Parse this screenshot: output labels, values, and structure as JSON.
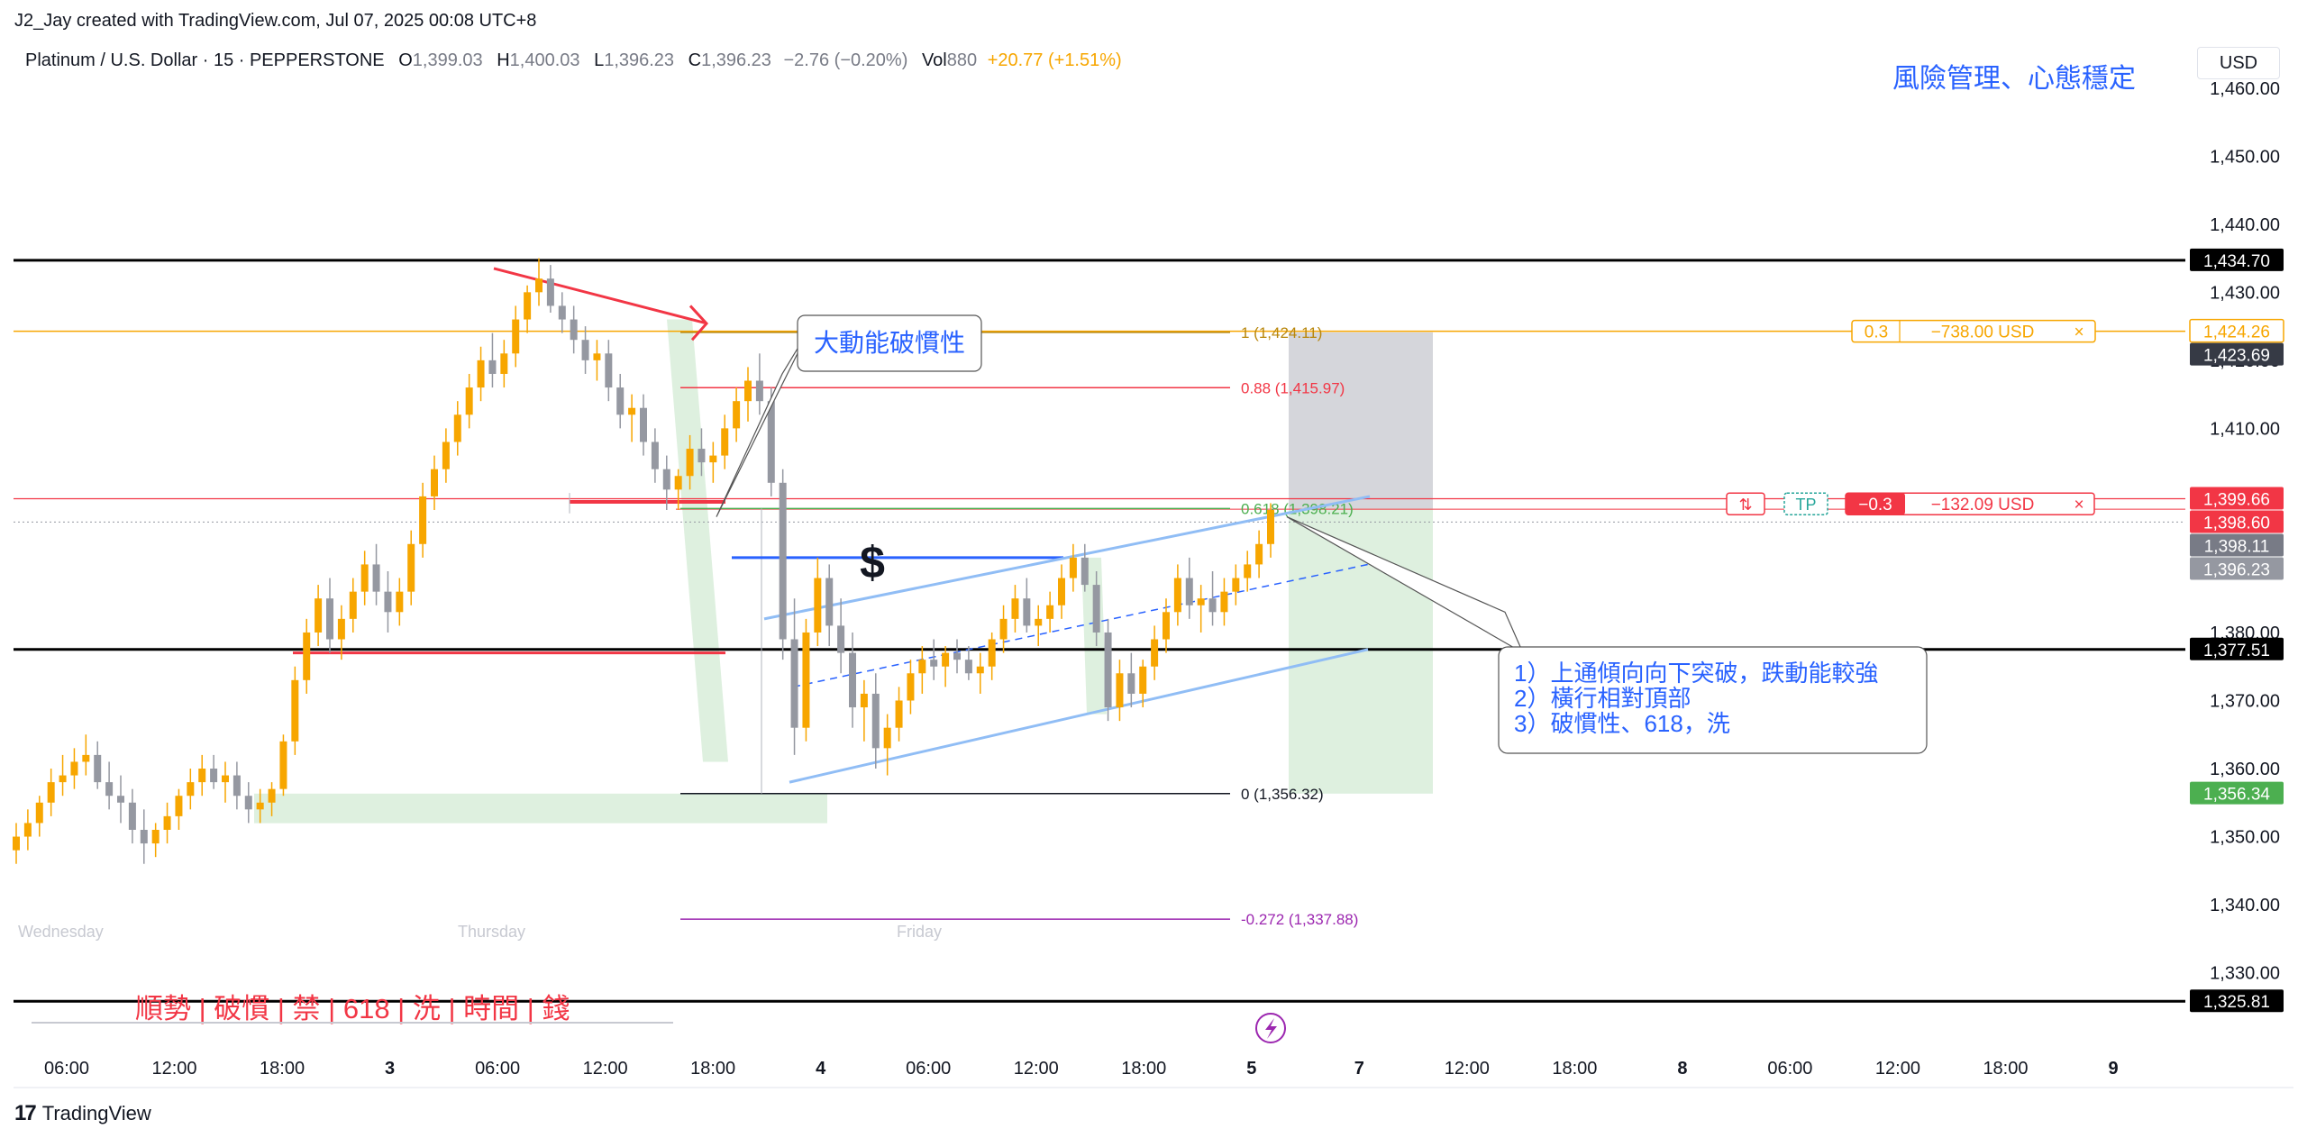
{
  "credit": "J2_Jay created with TradingView.com, Jul 07, 2025 00:08 UTC+8",
  "legend": {
    "symbol": "Platinum / U.S. Dollar · 15 · PEPPERSTONE",
    "o_key": "O",
    "o": "1,399.03",
    "h_key": "H",
    "h": "1,400.03",
    "l_key": "L",
    "l": "1,396.23",
    "c_key": "C",
    "c": "1,396.23",
    "change": "−2.76 (−0.20%)",
    "vol_key": "Vol",
    "vol": "880",
    "vol_change": "+20.77 (+1.51%)"
  },
  "currency": "USD",
  "footer": "TradingView",
  "colors": {
    "up": "#f7a600",
    "down": "#9598a1",
    "red": "#f23645",
    "blue": "#2962ff",
    "green": "#4caf50",
    "purple": "#9c27b0"
  },
  "chart_data": {
    "type": "candlestick",
    "ylim": [
      1322,
      1465
    ],
    "y_ticks": [
      "1,330.00",
      "1,340.00",
      "1,350.00",
      "1,360.00",
      "1,370.00",
      "1,380.00",
      "1,390.00",
      "1,400.00",
      "1,410.00",
      "1,420.00",
      "1,430.00",
      "1,440.00",
      "1,450.00",
      "1,460.00"
    ],
    "y_tick_values": [
      1330,
      1340,
      1350,
      1360,
      1370,
      1380,
      1390,
      1400,
      1410,
      1420,
      1430,
      1440,
      1450,
      1460
    ],
    "x_ticks": [
      "06:00",
      "12:00",
      "18:00",
      "3",
      "06:00",
      "12:00",
      "18:00",
      "4",
      "06:00",
      "12:00",
      "18:00",
      "5",
      "7",
      "12:00",
      "18:00",
      "8",
      "06:00",
      "12:00",
      "18:00",
      "9"
    ],
    "x_tick_bold": [
      false,
      false,
      false,
      true,
      false,
      false,
      false,
      true,
      false,
      false,
      false,
      true,
      true,
      false,
      false,
      true,
      false,
      false,
      false,
      true
    ],
    "day_labels": [
      "Wednesday",
      "Thursday",
      "Friday"
    ],
    "price_levels": [
      {
        "label": "1,434.70",
        "value": 1434.7,
        "color": "#000000"
      },
      {
        "label": "1,424.26",
        "value": 1424.26,
        "color": "#f7a600",
        "outlined": true
      },
      {
        "label": "1,423.69",
        "value": 1423.69,
        "color": "#363a45"
      },
      {
        "label": "1,399.66",
        "value": 1399.66,
        "color": "#f23645"
      },
      {
        "label": "1,398.60",
        "value": 1398.6,
        "color": "#f23645"
      },
      {
        "label": "1,398.11",
        "value": 1398.11,
        "color": "#787b86"
      },
      {
        "label": "1,396.23",
        "value": 1396.23,
        "color": "#9598a1"
      },
      {
        "label": "1,377.51",
        "value": 1377.51,
        "color": "#000000"
      },
      {
        "label": "1,356.34",
        "value": 1356.34,
        "color": "#4caf50"
      },
      {
        "label": "1,325.81",
        "value": 1325.81,
        "color": "#000000"
      }
    ],
    "fib": [
      {
        "label": "1 (1,424.11)",
        "value": 1424.11,
        "color": "#b8860b"
      },
      {
        "label": "0.88 (1,415.97)",
        "value": 1415.97,
        "color": "#f23645"
      },
      {
        "label": "0.618 (1,398.21)",
        "value": 1398.21,
        "color": "#4caf50"
      },
      {
        "label": "0 (1,356.32)",
        "value": 1356.32,
        "color": "#131722"
      },
      {
        "label": "-0.272 (1,337.88)",
        "value": 1337.88,
        "color": "#9c27b0"
      }
    ],
    "orders": [
      {
        "qty": "0.3",
        "pnl": "−738.00 USD",
        "close": "×",
        "value": 1424.26
      },
      {
        "qty": "−0.3",
        "pnl": "−132.09 USD",
        "close": "×",
        "tp": "TP",
        "swap": "⇅",
        "value": 1398.6
      }
    ],
    "annotations": {
      "top_right": "風險管理、心態穩定",
      "callout1": "大動能破慣性",
      "callout2": [
        "1）上通傾向向下突破，跌動能較強",
        "2）橫行相對頂部",
        "3）破慣性、618，洗"
      ],
      "bottom": "順勢 | 破慣 | 禁 | 618 | 洗 | 時間 | 錢",
      "dollar": "$"
    },
    "candles": [
      [
        1348,
        1352,
        1346,
        1350
      ],
      [
        1350,
        1354,
        1348,
        1352
      ],
      [
        1352,
        1356,
        1350,
        1355
      ],
      [
        1355,
        1360,
        1353,
        1358
      ],
      [
        1358,
        1362,
        1356,
        1359
      ],
      [
        1359,
        1363,
        1357,
        1361
      ],
      [
        1361,
        1365,
        1359,
        1362
      ],
      [
        1362,
        1364,
        1357,
        1358
      ],
      [
        1358,
        1361,
        1354,
        1356
      ],
      [
        1356,
        1359,
        1352,
        1355
      ],
      [
        1355,
        1357,
        1349,
        1351
      ],
      [
        1351,
        1354,
        1346,
        1349
      ],
      [
        1349,
        1352,
        1347,
        1351
      ],
      [
        1351,
        1355,
        1349,
        1353
      ],
      [
        1353,
        1357,
        1351,
        1356
      ],
      [
        1356,
        1360,
        1354,
        1358
      ],
      [
        1358,
        1362,
        1356,
        1360
      ],
      [
        1360,
        1362,
        1357,
        1358
      ],
      [
        1358,
        1361,
        1355,
        1359
      ],
      [
        1359,
        1361,
        1354,
        1356
      ],
      [
        1356,
        1358,
        1352,
        1354
      ],
      [
        1354,
        1357,
        1352,
        1355
      ],
      [
        1355,
        1358,
        1353,
        1357
      ],
      [
        1357,
        1365,
        1356,
        1364
      ],
      [
        1364,
        1375,
        1362,
        1373
      ],
      [
        1373,
        1382,
        1371,
        1380
      ],
      [
        1380,
        1387,
        1378,
        1385
      ],
      [
        1385,
        1388,
        1377,
        1379
      ],
      [
        1379,
        1384,
        1376,
        1382
      ],
      [
        1382,
        1388,
        1380,
        1386
      ],
      [
        1386,
        1392,
        1384,
        1390
      ],
      [
        1390,
        1393,
        1384,
        1386
      ],
      [
        1386,
        1389,
        1380,
        1383
      ],
      [
        1383,
        1388,
        1381,
        1386
      ],
      [
        1386,
        1395,
        1384,
        1393
      ],
      [
        1393,
        1402,
        1391,
        1400
      ],
      [
        1400,
        1406,
        1398,
        1404
      ],
      [
        1404,
        1410,
        1402,
        1408
      ],
      [
        1408,
        1414,
        1406,
        1412
      ],
      [
        1412,
        1418,
        1410,
        1416
      ],
      [
        1416,
        1422,
        1414,
        1420
      ],
      [
        1420,
        1424,
        1416,
        1418
      ],
      [
        1418,
        1423,
        1416,
        1421
      ],
      [
        1421,
        1428,
        1419,
        1426
      ],
      [
        1426,
        1431,
        1424,
        1430
      ],
      [
        1430,
        1435,
        1428,
        1432
      ],
      [
        1432,
        1434,
        1427,
        1428
      ],
      [
        1428,
        1430,
        1424,
        1426
      ],
      [
        1426,
        1428,
        1421,
        1423
      ],
      [
        1423,
        1425,
        1418,
        1420
      ],
      [
        1420,
        1423,
        1417,
        1421
      ],
      [
        1421,
        1423,
        1414,
        1416
      ],
      [
        1416,
        1418,
        1410,
        1412
      ],
      [
        1412,
        1415,
        1408,
        1413
      ],
      [
        1413,
        1415,
        1406,
        1408
      ],
      [
        1408,
        1410,
        1402,
        1404
      ],
      [
        1404,
        1406,
        1398,
        1401
      ],
      [
        1401,
        1404,
        1398,
        1403
      ],
      [
        1403,
        1409,
        1401,
        1407
      ],
      [
        1407,
        1410,
        1403,
        1405
      ],
      [
        1405,
        1408,
        1402,
        1406
      ],
      [
        1406,
        1412,
        1404,
        1410
      ],
      [
        1410,
        1416,
        1408,
        1414
      ],
      [
        1414,
        1419,
        1411,
        1417
      ],
      [
        1417,
        1421,
        1412,
        1414
      ],
      [
        1414,
        1416,
        1400,
        1402
      ],
      [
        1402,
        1404,
        1376,
        1379
      ],
      [
        1379,
        1385,
        1362,
        1366
      ],
      [
        1366,
        1382,
        1364,
        1380
      ],
      [
        1380,
        1391,
        1378,
        1388
      ],
      [
        1388,
        1390,
        1378,
        1381
      ],
      [
        1381,
        1385,
        1374,
        1377
      ],
      [
        1377,
        1380,
        1366,
        1369
      ],
      [
        1369,
        1373,
        1364,
        1371
      ],
      [
        1371,
        1374,
        1360,
        1363
      ],
      [
        1363,
        1368,
        1359,
        1366
      ],
      [
        1366,
        1372,
        1364,
        1370
      ],
      [
        1370,
        1376,
        1368,
        1374
      ],
      [
        1374,
        1378,
        1371,
        1376
      ],
      [
        1376,
        1379,
        1373,
        1375
      ],
      [
        1375,
        1378,
        1372,
        1377
      ],
      [
        1377,
        1379,
        1374,
        1376
      ],
      [
        1376,
        1378,
        1373,
        1374
      ],
      [
        1374,
        1377,
        1371,
        1375
      ],
      [
        1375,
        1380,
        1373,
        1379
      ],
      [
        1379,
        1384,
        1377,
        1382
      ],
      [
        1382,
        1387,
        1380,
        1385
      ],
      [
        1385,
        1388,
        1380,
        1381
      ],
      [
        1381,
        1384,
        1378,
        1382
      ],
      [
        1382,
        1386,
        1380,
        1384
      ],
      [
        1384,
        1390,
        1382,
        1388
      ],
      [
        1388,
        1393,
        1386,
        1391
      ],
      [
        1391,
        1393,
        1386,
        1387
      ],
      [
        1387,
        1389,
        1378,
        1380
      ],
      [
        1380,
        1382,
        1367,
        1369
      ],
      [
        1369,
        1376,
        1367,
        1374
      ],
      [
        1374,
        1377,
        1369,
        1371
      ],
      [
        1371,
        1376,
        1369,
        1375
      ],
      [
        1375,
        1381,
        1373,
        1379
      ],
      [
        1379,
        1385,
        1377,
        1383
      ],
      [
        1383,
        1390,
        1381,
        1388
      ],
      [
        1388,
        1391,
        1382,
        1384
      ],
      [
        1384,
        1387,
        1380,
        1385
      ],
      [
        1385,
        1389,
        1381,
        1383
      ],
      [
        1383,
        1388,
        1381,
        1386
      ],
      [
        1386,
        1390,
        1384,
        1388
      ],
      [
        1388,
        1392,
        1386,
        1390
      ],
      [
        1390,
        1395,
        1388,
        1393
      ],
      [
        1393,
        1399,
        1391,
        1398
      ]
    ],
    "x_range": [
      15,
      1410
    ]
  }
}
